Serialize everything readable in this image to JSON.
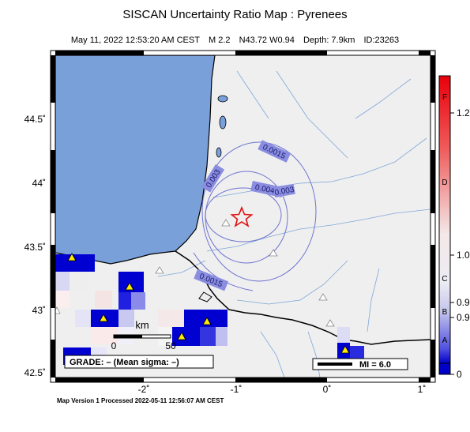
{
  "header": {
    "title": "SISCAN Uncertainty Ratio Map : Pyrenees",
    "date": "May 11, 2022 12:53:20 AM CEST",
    "magnitude": "M 2.2",
    "location": "N43.72 W0.94",
    "depth": "Depth: 7.9km",
    "event_id": "ID:23263"
  },
  "axes": {
    "lat_ticks": [
      "44.5˚",
      "44˚",
      "43.5˚",
      "43˚",
      "42.5˚"
    ],
    "lon_ticks": [
      "-2˚",
      "-1˚",
      "0˚",
      "1˚"
    ]
  },
  "contours": {
    "labels": [
      "0.0015",
      "0.003",
      "0.0045",
      "0.003",
      "0.0015"
    ]
  },
  "scale_bar": {
    "unit": "km",
    "start": "0",
    "end": "50"
  },
  "grade_box": "GRADE: – (Mean sigma: –)",
  "mi_box": "MI = 6.0",
  "colorbar": {
    "grades": [
      "F",
      "D",
      "C",
      "B",
      "A"
    ],
    "values": [
      "1.2",
      "1.0",
      "0.9",
      "0.9",
      "0"
    ],
    "colors": {
      "top": "#e8000b",
      "mid": "#f0f0f0",
      "bottom": "#0000c8"
    }
  },
  "footer": "Map Version 1 Processed 2022-05-11 12:56:07 AM CEST"
}
